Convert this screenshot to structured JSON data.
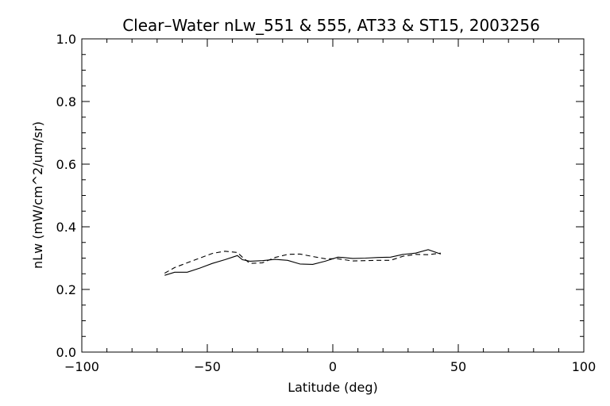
{
  "chart_data": {
    "type": "line",
    "title": "Clear–Water nLw_551 & 555, AT33 & ST15, 2003256",
    "xlabel": "Latitude (deg)",
    "ylabel": "nLw (mW/cm^2/um/sr)",
    "xlim": [
      -100,
      100
    ],
    "ylim": [
      0.0,
      1.0
    ],
    "x_ticks": [
      -100,
      -50,
      0,
      50,
      100
    ],
    "x_tick_labels": [
      "−100",
      "−50",
      "0",
      "50",
      "100"
    ],
    "y_ticks": [
      0.0,
      0.2,
      0.4,
      0.6,
      0.8,
      1.0
    ],
    "y_tick_labels": [
      "0.0",
      "0.2",
      "0.4",
      "0.6",
      "0.8",
      "1.0"
    ],
    "grid": false,
    "series": [
      {
        "style": "solid",
        "x": [
          -67,
          -63,
          -58,
          -53,
          -48,
          -43,
          -38,
          -36,
          -33,
          -28,
          -23,
          -18,
          -13,
          -8,
          -3,
          2,
          4,
          8,
          13,
          18,
          23,
          28,
          33,
          38,
          43
        ],
        "y": [
          0.245,
          0.255,
          0.255,
          0.268,
          0.283,
          0.295,
          0.308,
          0.295,
          0.29,
          0.292,
          0.296,
          0.293,
          0.281,
          0.28,
          0.29,
          0.303,
          0.302,
          0.299,
          0.3,
          0.302,
          0.303,
          0.312,
          0.316,
          0.327,
          0.313
        ]
      },
      {
        "style": "dashed",
        "x": [
          -67,
          -63,
          -58,
          -53,
          -48,
          -43,
          -38,
          -36,
          -33,
          -28,
          -23,
          -18,
          -13,
          -8,
          -3,
          2,
          8,
          13,
          18,
          23,
          28,
          33,
          38,
          43
        ],
        "y": [
          0.252,
          0.27,
          0.285,
          0.3,
          0.315,
          0.322,
          0.318,
          0.303,
          0.283,
          0.285,
          0.302,
          0.312,
          0.313,
          0.305,
          0.298,
          0.298,
          0.291,
          0.292,
          0.293,
          0.293,
          0.306,
          0.312,
          0.311,
          0.316
        ]
      }
    ]
  }
}
